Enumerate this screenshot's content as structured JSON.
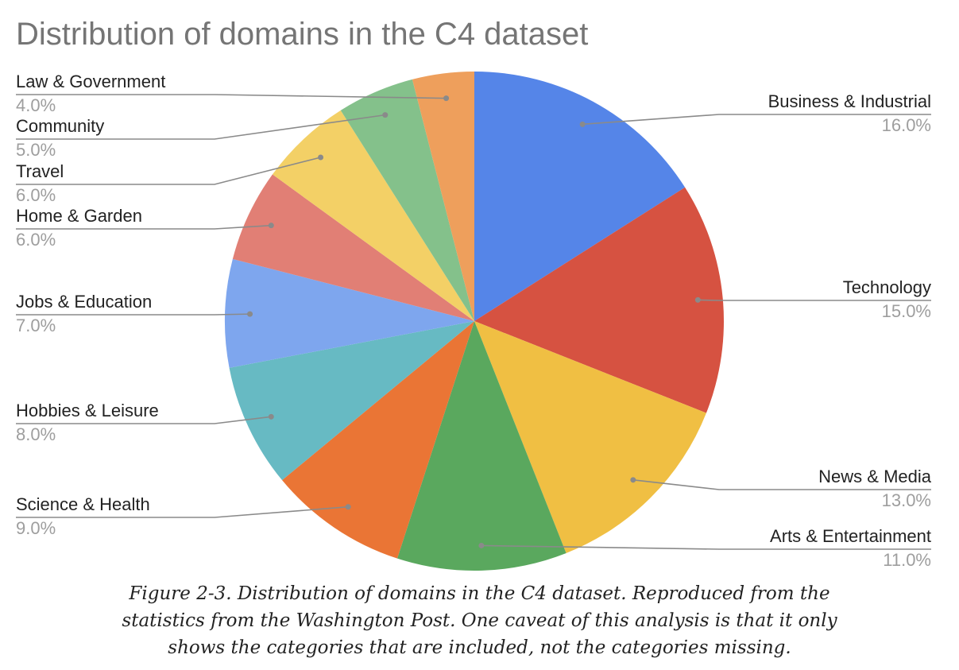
{
  "chart_data": {
    "type": "pie",
    "title": "Distribution of domains in the C4 dataset",
    "slices": [
      {
        "label": "Business & Industrial",
        "value": 16.0,
        "pct_label": "16.0%",
        "color": "#5585e8"
      },
      {
        "label": "Technology",
        "value": 15.0,
        "pct_label": "15.0%",
        "color": "#d65241"
      },
      {
        "label": "News & Media",
        "value": 13.0,
        "pct_label": "13.0%",
        "color": "#f0bf43"
      },
      {
        "label": "Arts & Entertainment",
        "value": 11.0,
        "pct_label": "11.0%",
        "color": "#5aa85e"
      },
      {
        "label": "Science & Health",
        "value": 9.0,
        "pct_label": "9.0%",
        "color": "#ea7535"
      },
      {
        "label": "Hobbies & Leisure",
        "value": 8.0,
        "pct_label": "8.0%",
        "color": "#67bac3"
      },
      {
        "label": "Jobs & Education",
        "value": 7.0,
        "pct_label": "7.0%",
        "color": "#7ea6ee"
      },
      {
        "label": "Home & Garden",
        "value": 6.0,
        "pct_label": "6.0%",
        "color": "#e17f75"
      },
      {
        "label": "Travel",
        "value": 6.0,
        "pct_label": "6.0%",
        "color": "#f3d066"
      },
      {
        "label": "Community",
        "value": 5.0,
        "pct_label": "5.0%",
        "color": "#84c18b"
      },
      {
        "label": "Law & Government",
        "value": 4.0,
        "pct_label": "4.0%",
        "color": "#ee9f5c"
      }
    ]
  },
  "caption": {
    "line1": "Figure 2-3. Distribution of domains in the C4 dataset. Reproduced from the",
    "line2": "statistics from the Washington Post. One caveat of this analysis is that it only",
    "line3": "shows the categories that are included, not the categories missing."
  }
}
